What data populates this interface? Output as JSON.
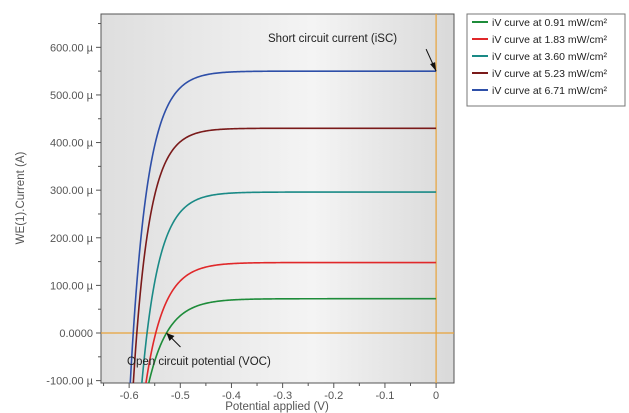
{
  "chart_data": {
    "type": "line",
    "xlabel": "Potential applied (V)",
    "ylabel": "WE(1).Current (A)",
    "xlim": [
      -0.655,
      0.035
    ],
    "ylim": [
      -105,
      670
    ],
    "x_ticks": [
      -0.6,
      -0.5,
      -0.4,
      -0.3,
      -0.2,
      -0.1,
      0
    ],
    "x_tick_labels": [
      "-0.6",
      "-0.5",
      "-0.4",
      "-0.3",
      "-0.2",
      "-0.1",
      "0"
    ],
    "y_ticks": [
      -100,
      0,
      100,
      200,
      300,
      400,
      500,
      600
    ],
    "y_tick_labels": [
      "-100.00 µ",
      "0.0000",
      "100.00 µ",
      "200.00 µ",
      "300.00 µ",
      "400.00 µ",
      "500.00 µ",
      "600.00 µ"
    ],
    "y_unit": "µA",
    "background_gradient": true,
    "grid": false,
    "legend_position": "outside-right-top",
    "reference_lines": {
      "x": 0,
      "y": 0,
      "color": "#e8a23a"
    },
    "series": [
      {
        "name": "iV curve at 0.91 mW/cm²",
        "color": "#1e8c3a",
        "isc": 72,
        "voc": -0.527,
        "k": 26
      },
      {
        "name": "iV curve at 1.83 mW/cm²",
        "color": "#e0282a",
        "isc": 148,
        "voc": -0.548,
        "k": 28
      },
      {
        "name": "iV curve at 3.60 mW/cm²",
        "color": "#1a8a86",
        "isc": 296,
        "voc": -0.565,
        "k": 30
      },
      {
        "name": "iV curve at 5.23 mW/cm²",
        "color": "#7a1a1a",
        "isc": 430,
        "voc": -0.585,
        "k": 32
      },
      {
        "name": "iV curve at 6.71 mW/cm²",
        "color": "#2e4fa8",
        "isc": 550,
        "voc": -0.592,
        "k": 30
      }
    ],
    "annotations": [
      {
        "text": "Short circuit current (iSC)",
        "point": [
          0,
          550
        ]
      },
      {
        "text": "Open circuit potential (VOC)",
        "point": [
          -0.527,
          0
        ]
      }
    ]
  }
}
